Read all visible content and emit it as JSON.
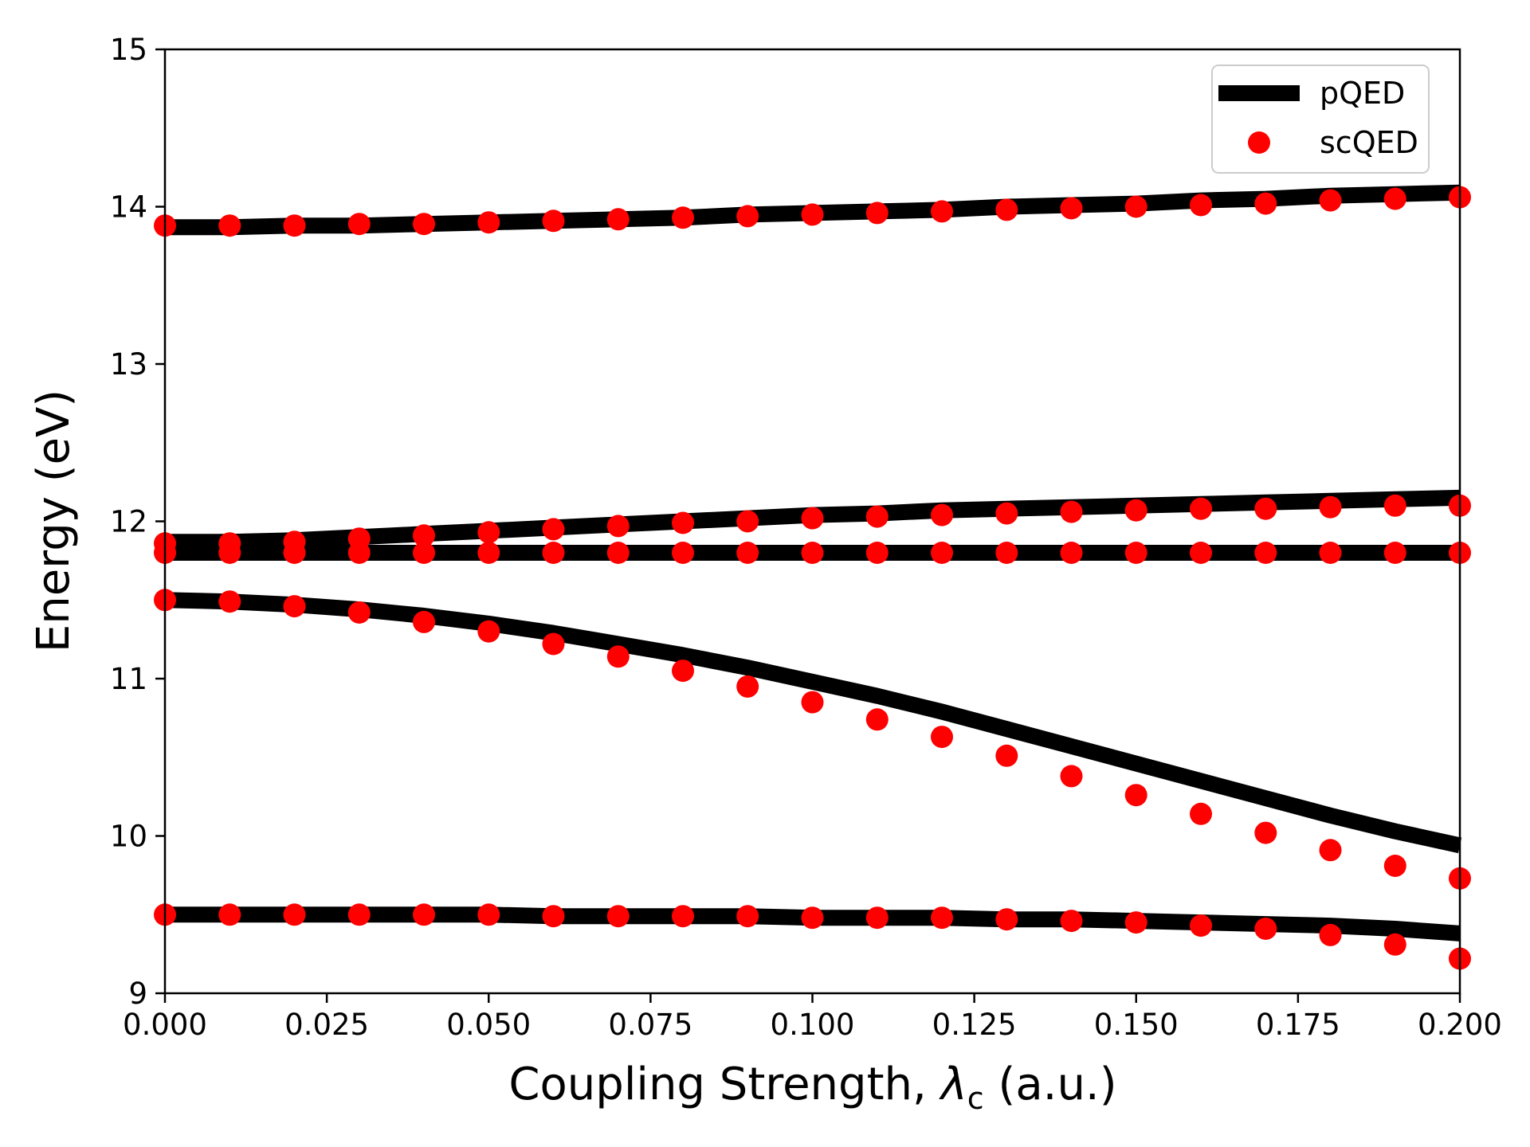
{
  "chart_data": {
    "type": "line",
    "title": "",
    "xlabel": "Coupling Strength, λc (a.u.)",
    "xlabel_parts": {
      "before": "Coupling Strength, ",
      "symbol": "λ",
      "subscript": "c",
      "after": " (a.u.)"
    },
    "ylabel": "Energy (eV)",
    "xlim": [
      0.0,
      0.2
    ],
    "ylim": [
      9,
      15
    ],
    "xticks": [
      "0.000",
      "0.025",
      "0.050",
      "0.075",
      "0.100",
      "0.125",
      "0.150",
      "0.175",
      "0.200"
    ],
    "yticks": [
      "9",
      "10",
      "11",
      "12",
      "13",
      "14",
      "15"
    ],
    "grid": false,
    "legend_position": "top-right",
    "legend": [
      {
        "label": "pQED",
        "style": "line",
        "color": "#000000"
      },
      {
        "label": "scQED",
        "style": "marker",
        "color": "#ff0000"
      }
    ],
    "x": [
      0.0,
      0.01,
      0.02,
      0.03,
      0.04,
      0.05,
      0.06,
      0.07,
      0.08,
      0.09,
      0.1,
      0.11,
      0.12,
      0.13,
      0.14,
      0.15,
      0.16,
      0.17,
      0.18,
      0.19,
      0.2
    ],
    "pQED_series": [
      {
        "values": [
          13.87,
          13.87,
          13.88,
          13.88,
          13.89,
          13.9,
          13.91,
          13.92,
          13.93,
          13.95,
          13.96,
          13.97,
          13.98,
          14.0,
          14.01,
          14.02,
          14.04,
          14.05,
          14.07,
          14.08,
          14.09
        ]
      },
      {
        "values": [
          11.87,
          11.87,
          11.88,
          11.9,
          11.92,
          11.94,
          11.96,
          11.98,
          12.0,
          12.02,
          12.04,
          12.05,
          12.07,
          12.08,
          12.09,
          12.1,
          12.11,
          12.12,
          12.13,
          12.14,
          12.15
        ]
      },
      {
        "values": [
          11.8,
          11.8,
          11.8,
          11.8,
          11.8,
          11.8,
          11.8,
          11.8,
          11.8,
          11.8,
          11.8,
          11.8,
          11.8,
          11.8,
          11.8,
          11.8,
          11.8,
          11.8,
          11.8,
          11.8,
          11.8
        ]
      },
      {
        "values": [
          11.5,
          11.49,
          11.47,
          11.44,
          11.4,
          11.35,
          11.29,
          11.22,
          11.15,
          11.07,
          10.98,
          10.89,
          10.79,
          10.68,
          10.57,
          10.46,
          10.35,
          10.24,
          10.13,
          10.03,
          9.94
        ]
      },
      {
        "values": [
          9.5,
          9.5,
          9.5,
          9.5,
          9.5,
          9.5,
          9.49,
          9.49,
          9.49,
          9.49,
          9.48,
          9.48,
          9.48,
          9.47,
          9.47,
          9.46,
          9.45,
          9.44,
          9.43,
          9.41,
          9.38
        ]
      }
    ],
    "scQED_series": [
      {
        "values": [
          13.88,
          13.88,
          13.88,
          13.89,
          13.89,
          13.9,
          13.91,
          13.92,
          13.93,
          13.94,
          13.95,
          13.96,
          13.97,
          13.98,
          13.99,
          14.0,
          14.01,
          14.02,
          14.04,
          14.05,
          14.06
        ]
      },
      {
        "values": [
          11.86,
          11.86,
          11.87,
          11.89,
          11.91,
          11.93,
          11.95,
          11.97,
          11.99,
          12.0,
          12.02,
          12.03,
          12.04,
          12.05,
          12.06,
          12.07,
          12.08,
          12.08,
          12.09,
          12.1,
          12.1
        ]
      },
      {
        "values": [
          11.8,
          11.8,
          11.8,
          11.8,
          11.8,
          11.8,
          11.8,
          11.8,
          11.8,
          11.8,
          11.8,
          11.8,
          11.8,
          11.8,
          11.8,
          11.8,
          11.8,
          11.8,
          11.8,
          11.8,
          11.8
        ]
      },
      {
        "values": [
          11.5,
          11.49,
          11.46,
          11.42,
          11.36,
          11.3,
          11.22,
          11.14,
          11.05,
          10.95,
          10.85,
          10.74,
          10.63,
          10.51,
          10.38,
          10.26,
          10.14,
          10.02,
          9.91,
          9.81,
          9.73
        ]
      },
      {
        "values": [
          9.5,
          9.5,
          9.5,
          9.5,
          9.5,
          9.5,
          9.49,
          9.49,
          9.49,
          9.49,
          9.48,
          9.48,
          9.48,
          9.47,
          9.46,
          9.45,
          9.43,
          9.41,
          9.37,
          9.31,
          9.22
        ]
      }
    ]
  }
}
